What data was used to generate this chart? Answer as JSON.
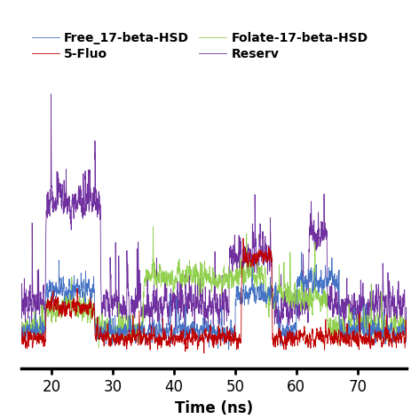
{
  "title": "",
  "xlabel": "Time (ns)",
  "ylabel": "",
  "xlim": [
    15,
    78
  ],
  "ylim": [
    0,
    14
  ],
  "xticks": [
    20,
    30,
    40,
    50,
    60,
    70
  ],
  "legend_entries": [
    "Free_17-beta-HSD",
    "Folate-17-beta-HSD",
    "5-Fluo",
    "Reserv"
  ],
  "line_colors": [
    "#4472C4",
    "#92D050",
    "#C00000",
    "#7030A0"
  ],
  "seed": 42,
  "n_points": 3000,
  "time_start": 15,
  "time_end": 78
}
